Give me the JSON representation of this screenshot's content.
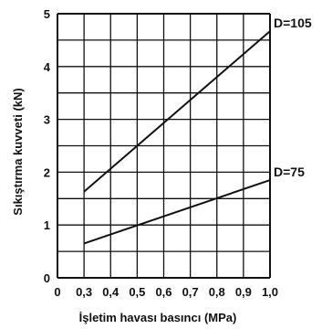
{
  "chart_data": {
    "type": "line",
    "title": "",
    "xlabel": "İşletim havası basıncı (MPa)",
    "ylabel": "Sıkıştırma kuvveti (kN)",
    "xlim": [
      0,
      1.0
    ],
    "ylim": [
      0,
      5
    ],
    "x_ticks": [
      "0",
      "0,3",
      "0,4",
      "0,5",
      "0,6",
      "0,7",
      "0,8",
      "0,9",
      "1,0"
    ],
    "y_ticks": [
      "0",
      "1",
      "2",
      "3",
      "4",
      "5"
    ],
    "grid": true,
    "series": [
      {
        "name": "D=105",
        "x": [
          0.3,
          1.0
        ],
        "y": [
          1.63,
          4.67
        ]
      },
      {
        "name": "D=75",
        "x": [
          0.3,
          1.0
        ],
        "y": [
          0.65,
          1.85
        ]
      }
    ]
  }
}
